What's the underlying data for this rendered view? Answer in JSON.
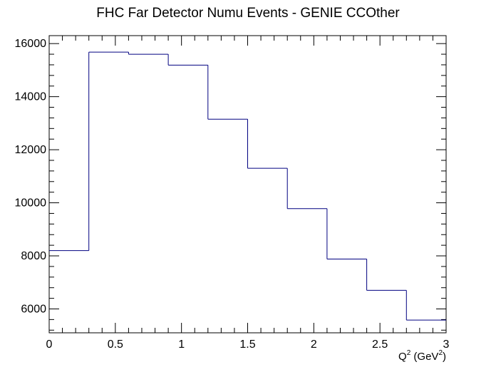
{
  "chart_data": {
    "type": "histogram",
    "title": "FHC Far Detector Numu Events - GENIE CCOther",
    "xlabel": {
      "base": "Q",
      "sup1": "2",
      "mid": " (GeV",
      "sup2": "2",
      "end": ")"
    },
    "ylabel": "",
    "xlim": [
      0,
      3
    ],
    "ylim": [
      5100,
      16300
    ],
    "grid": false,
    "legend": "none",
    "line_color": "#000080",
    "bin_edges": [
      0,
      0.3,
      0.6,
      0.9,
      1.2,
      1.5,
      1.8,
      2.1,
      2.4,
      2.7,
      3.0
    ],
    "values": [
      8200,
      15680,
      15600,
      15190,
      13150,
      11300,
      9780,
      7880,
      6700,
      5580
    ],
    "x_ticks": [
      {
        "value": 0,
        "label": "0"
      },
      {
        "value": 0.5,
        "label": "0.5"
      },
      {
        "value": 1,
        "label": "1"
      },
      {
        "value": 1.5,
        "label": "1.5"
      },
      {
        "value": 2,
        "label": "2"
      },
      {
        "value": 2.5,
        "label": "2.5"
      },
      {
        "value": 3,
        "label": "3"
      }
    ],
    "y_ticks": [
      {
        "value": 6000,
        "label": "6000"
      },
      {
        "value": 8000,
        "label": "8000"
      },
      {
        "value": 10000,
        "label": "10000"
      },
      {
        "value": 12000,
        "label": "12000"
      },
      {
        "value": 14000,
        "label": "14000"
      },
      {
        "value": 16000,
        "label": "16000"
      }
    ]
  }
}
